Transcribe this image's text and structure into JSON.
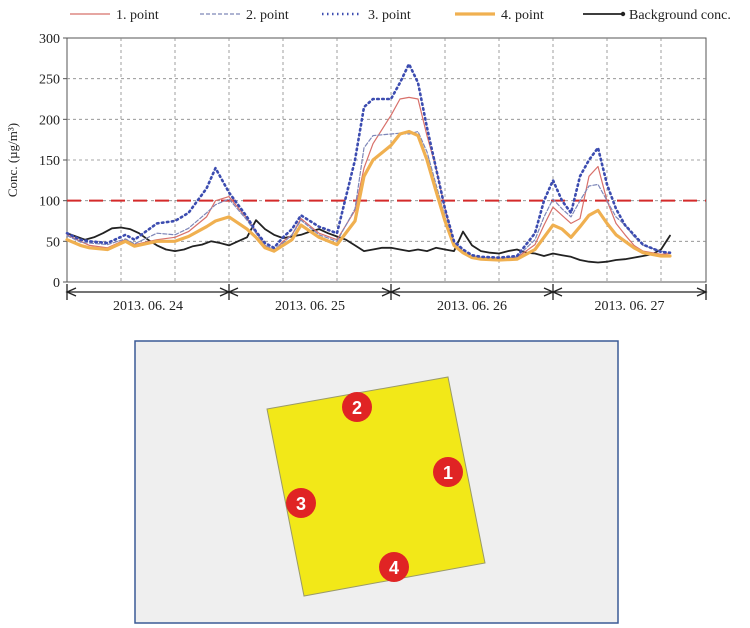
{
  "chart_data": {
    "type": "line",
    "ylabel": "Conc. (µg/m³)",
    "ylim": [
      0,
      300
    ],
    "yticks": [
      0,
      50,
      100,
      150,
      200,
      250,
      300
    ],
    "grid": true,
    "legend_position": "top",
    "threshold": {
      "value": 100,
      "color": "#d42a2a"
    },
    "date_periods": [
      "2013. 06. 24",
      "2013. 06. 25",
      "2013. 06. 26",
      "2013. 06. 27"
    ],
    "x_unit": "hours since 2013-06-24 00:00",
    "series": [
      {
        "name": "1. point",
        "color": "#d8706a",
        "style": "solid",
        "width": 1.2,
        "x": [
          0,
          3,
          5,
          9,
          13,
          15,
          20,
          24,
          27,
          31,
          33,
          36,
          40,
          42,
          44,
          46,
          48,
          50,
          52,
          56,
          60,
          64,
          66,
          68,
          72,
          74,
          76,
          78,
          80,
          82,
          84,
          86,
          88,
          90,
          92,
          96,
          100,
          104,
          106,
          108,
          110,
          112,
          114,
          116,
          118,
          120,
          122,
          124,
          126,
          128,
          132,
          134
        ],
        "y": [
          58,
          50,
          45,
          42,
          52,
          46,
          52,
          55,
          62,
          80,
          100,
          105,
          78,
          62,
          45,
          38,
          50,
          58,
          78,
          60,
          52,
          88,
          140,
          170,
          205,
          225,
          227,
          225,
          180,
          140,
          90,
          48,
          38,
          32,
          30,
          29,
          30,
          46,
          70,
          92,
          82,
          72,
          78,
          130,
          142,
          100,
          72,
          58,
          45,
          38,
          34,
          35
        ]
      },
      {
        "name": "2. point",
        "color": "#7d86b8",
        "style": "dashed",
        "width": 1.2,
        "x": [
          0,
          3,
          5,
          9,
          13,
          15,
          20,
          24,
          27,
          31,
          33,
          36,
          40,
          42,
          44,
          46,
          48,
          50,
          52,
          56,
          60,
          64,
          66,
          68,
          72,
          74,
          76,
          78,
          80,
          82,
          84,
          86,
          88,
          90,
          92,
          96,
          100,
          104,
          106,
          108,
          110,
          112,
          114,
          116,
          118,
          120,
          122,
          124,
          126,
          128,
          132,
          134
        ],
        "y": [
          57,
          49,
          48,
          46,
          53,
          47,
          60,
          58,
          66,
          85,
          95,
          102,
          76,
          60,
          45,
          40,
          48,
          58,
          76,
          58,
          50,
          90,
          165,
          180,
          182,
          183,
          182,
          185,
          160,
          120,
          80,
          48,
          38,
          32,
          30,
          29,
          31,
          52,
          80,
          102,
          90,
          80,
          100,
          118,
          120,
          100,
          80,
          70,
          56,
          45,
          38,
          36
        ]
      },
      {
        "name": "3. point",
        "color": "#3c4cb0",
        "style": "dotted",
        "width": 2.6,
        "x": [
          0,
          3,
          5,
          9,
          13,
          15,
          20,
          24,
          27,
          31,
          33,
          36,
          40,
          42,
          44,
          46,
          48,
          50,
          52,
          56,
          60,
          64,
          66,
          68,
          72,
          74,
          76,
          78,
          80,
          82,
          84,
          86,
          88,
          90,
          92,
          96,
          100,
          104,
          106,
          108,
          110,
          112,
          114,
          116,
          118,
          120,
          122,
          124,
          126,
          128,
          132,
          134
        ],
        "y": [
          60,
          52,
          50,
          48,
          58,
          52,
          72,
          75,
          85,
          115,
          140,
          110,
          80,
          62,
          48,
          42,
          55,
          65,
          82,
          68,
          60,
          150,
          215,
          225,
          225,
          245,
          268,
          245,
          190,
          140,
          90,
          50,
          40,
          33,
          31,
          30,
          32,
          60,
          100,
          125,
          100,
          85,
          130,
          150,
          165,
          120,
          90,
          70,
          58,
          46,
          37,
          36
        ]
      },
      {
        "name": "4. point",
        "color": "#f0b050",
        "style": "solid",
        "width": 3.2,
        "x": [
          0,
          3,
          5,
          9,
          13,
          15,
          20,
          24,
          27,
          31,
          33,
          36,
          40,
          42,
          44,
          46,
          48,
          50,
          52,
          56,
          60,
          64,
          66,
          68,
          72,
          74,
          76,
          78,
          80,
          82,
          84,
          86,
          88,
          90,
          92,
          96,
          100,
          104,
          106,
          108,
          110,
          112,
          114,
          116,
          118,
          120,
          122,
          124,
          126,
          128,
          132,
          134
        ],
        "y": [
          52,
          45,
          42,
          40,
          50,
          44,
          50,
          50,
          56,
          68,
          75,
          80,
          65,
          55,
          42,
          38,
          45,
          52,
          70,
          55,
          46,
          75,
          130,
          150,
          168,
          182,
          185,
          180,
          150,
          112,
          75,
          45,
          36,
          30,
          28,
          27,
          28,
          40,
          55,
          70,
          65,
          55,
          68,
          82,
          88,
          72,
          58,
          50,
          42,
          36,
          32,
          32
        ]
      },
      {
        "name": "Background conc.",
        "color": "#222222",
        "style": "solid",
        "width": 1.8,
        "x": [
          0,
          2,
          4,
          6,
          8,
          10,
          12,
          14,
          16,
          18,
          20,
          22,
          24,
          26,
          28,
          30,
          32,
          34,
          36,
          38,
          40,
          42,
          44,
          46,
          48,
          50,
          52,
          54,
          56,
          58,
          60,
          62,
          64,
          66,
          68,
          70,
          72,
          74,
          76,
          78,
          80,
          82,
          84,
          86,
          88,
          90,
          92,
          94,
          96,
          98,
          100,
          102,
          104,
          106,
          108,
          110,
          112,
          114,
          116,
          118,
          120,
          122,
          124,
          126,
          128,
          130,
          132,
          134
        ],
        "y": [
          60,
          56,
          52,
          55,
          60,
          66,
          67,
          65,
          60,
          52,
          45,
          40,
          38,
          40,
          44,
          46,
          50,
          48,
          45,
          50,
          55,
          76,
          65,
          58,
          54,
          56,
          58,
          62,
          65,
          60,
          56,
          52,
          45,
          38,
          40,
          42,
          42,
          40,
          38,
          40,
          38,
          42,
          40,
          38,
          62,
          45,
          38,
          36,
          35,
          38,
          40,
          36,
          35,
          32,
          35,
          33,
          31,
          27,
          25,
          24,
          25,
          27,
          28,
          30,
          32,
          34,
          40,
          57
        ]
      }
    ]
  },
  "site_map": {
    "labels": [
      "1",
      "2",
      "3",
      "4"
    ],
    "square_color": "#f2e818",
    "marker_color": "#e02424",
    "background_color": "#efefef",
    "border_color": "#3a5a96"
  }
}
